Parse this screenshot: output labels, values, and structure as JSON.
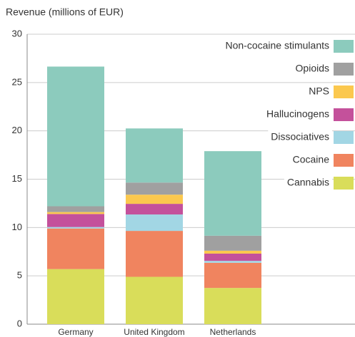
{
  "chart_data": {
    "type": "stacked_bar",
    "title": "Revenue (millions of EUR)",
    "categories": [
      "Germany",
      "United Kingdom",
      "Netherlands"
    ],
    "series": [
      {
        "name": "Cannabis",
        "color": "#d9dd5a",
        "values": [
          5.7,
          4.9,
          3.75
        ]
      },
      {
        "name": "Cocaine",
        "color": "#f0845f",
        "values": [
          4.2,
          4.75,
          2.6
        ]
      },
      {
        "name": "Dissociatives",
        "color": "#a2d6e4",
        "values": [
          0.15,
          1.7,
          0.2
        ]
      },
      {
        "name": "Hallucinogens",
        "color": "#c4519b",
        "values": [
          1.35,
          1.1,
          0.75
        ]
      },
      {
        "name": "NPS",
        "color": "#fbc84e",
        "values": [
          0.2,
          0.95,
          0.3
        ]
      },
      {
        "name": "Opioids",
        "color": "#a0a0a0",
        "values": [
          0.6,
          1.25,
          1.55
        ]
      },
      {
        "name": "Non-cocaine stimulants",
        "color": "#8ccbbd",
        "values": [
          14.45,
          5.6,
          8.75
        ]
      }
    ],
    "ylim": [
      0,
      30
    ],
    "yticks": [
      0,
      5,
      10,
      15,
      20,
      25,
      30
    ],
    "grid": true,
    "legend": "upper right"
  }
}
